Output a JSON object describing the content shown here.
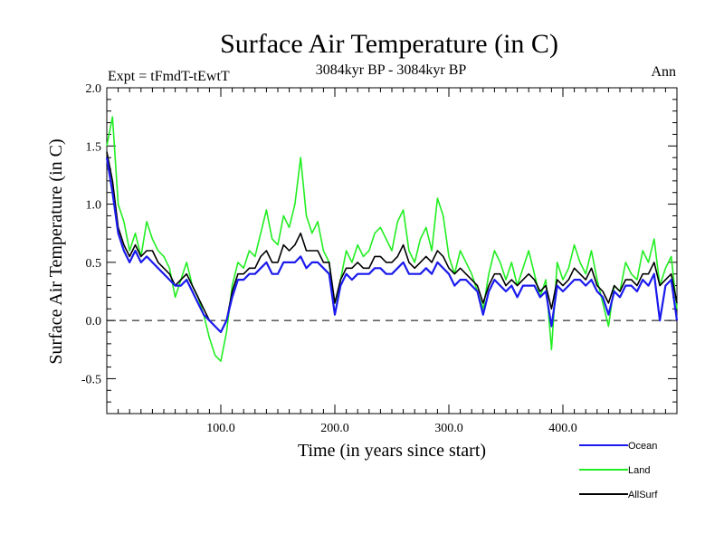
{
  "chart_data": {
    "type": "line",
    "title": "Surface Air Temperature (in C)",
    "subtitle": "3084kyr BP - 3084kyr BP",
    "experiment_label": "Expt = tFmdT-tEwtT",
    "season_label": "Ann",
    "xlabel": "Time (in years since start)",
    "ylabel": "Surface Air Temperature (in C)",
    "xlim": [
      0,
      500
    ],
    "ylim": [
      -0.8,
      2.0
    ],
    "x_ticks": [
      {
        "value": 100,
        "label": "100.0"
      },
      {
        "value": 200,
        "label": "200.0"
      },
      {
        "value": 300,
        "label": "300.0"
      },
      {
        "value": 400,
        "label": "400.0"
      }
    ],
    "y_ticks": [
      {
        "value": -0.5,
        "label": "-0.5"
      },
      {
        "value": 0.0,
        "label": "0.0"
      },
      {
        "value": 0.5,
        "label": "0.5"
      },
      {
        "value": 1.0,
        "label": "1.0"
      },
      {
        "value": 1.5,
        "label": "1.5"
      },
      {
        "value": 2.0,
        "label": "2.0"
      }
    ],
    "reference_line": {
      "y": 0.0,
      "style": "dashed"
    },
    "legend": {
      "placement": "bottom-right"
    },
    "series": [
      {
        "name": "Land",
        "color": "#22ee22",
        "x": [
          0,
          5,
          10,
          15,
          20,
          25,
          30,
          35,
          40,
          45,
          50,
          55,
          60,
          65,
          70,
          75,
          80,
          85,
          90,
          95,
          100,
          105,
          110,
          115,
          120,
          125,
          130,
          135,
          140,
          145,
          150,
          155,
          160,
          165,
          170,
          175,
          180,
          185,
          190,
          195,
          200,
          205,
          210,
          215,
          220,
          225,
          230,
          235,
          240,
          245,
          250,
          255,
          260,
          265,
          270,
          275,
          280,
          285,
          290,
          295,
          300,
          305,
          310,
          315,
          320,
          325,
          330,
          335,
          340,
          345,
          350,
          355,
          360,
          365,
          370,
          375,
          380,
          385,
          390,
          395,
          400,
          405,
          410,
          415,
          420,
          425,
          430,
          435,
          440,
          445,
          450,
          455,
          460,
          465,
          470,
          475,
          480,
          485,
          490,
          495,
          500
        ],
        "values": [
          1.5,
          1.75,
          1.0,
          0.85,
          0.6,
          0.75,
          0.55,
          0.85,
          0.7,
          0.6,
          0.55,
          0.45,
          0.2,
          0.35,
          0.5,
          0.3,
          0.2,
          0.05,
          -0.15,
          -0.3,
          -0.35,
          -0.1,
          0.3,
          0.5,
          0.45,
          0.6,
          0.55,
          0.75,
          0.95,
          0.7,
          0.65,
          0.9,
          0.8,
          1.0,
          1.4,
          0.9,
          0.75,
          0.85,
          0.6,
          0.5,
          0.05,
          0.35,
          0.6,
          0.5,
          0.65,
          0.55,
          0.6,
          0.75,
          0.8,
          0.7,
          0.6,
          0.85,
          0.95,
          0.6,
          0.5,
          0.7,
          0.8,
          0.6,
          1.05,
          0.9,
          0.55,
          0.4,
          0.6,
          0.5,
          0.4,
          0.25,
          0.1,
          0.4,
          0.6,
          0.5,
          0.35,
          0.5,
          0.3,
          0.45,
          0.6,
          0.4,
          0.2,
          0.35,
          -0.25,
          0.5,
          0.35,
          0.45,
          0.65,
          0.5,
          0.4,
          0.6,
          0.35,
          0.15,
          -0.05,
          0.3,
          0.25,
          0.5,
          0.4,
          0.35,
          0.6,
          0.5,
          0.7,
          0.3,
          0.45,
          0.55,
          0.1
        ]
      },
      {
        "name": "AllSurf",
        "color": "#000000",
        "x": [
          0,
          5,
          10,
          15,
          20,
          25,
          30,
          35,
          40,
          45,
          50,
          55,
          60,
          65,
          70,
          75,
          80,
          85,
          90,
          95,
          100,
          105,
          110,
          115,
          120,
          125,
          130,
          135,
          140,
          145,
          150,
          155,
          160,
          165,
          170,
          175,
          180,
          185,
          190,
          195,
          200,
          205,
          210,
          215,
          220,
          225,
          230,
          235,
          240,
          245,
          250,
          255,
          260,
          265,
          270,
          275,
          280,
          285,
          290,
          295,
          300,
          305,
          310,
          315,
          320,
          325,
          330,
          335,
          340,
          345,
          350,
          355,
          360,
          365,
          370,
          375,
          380,
          385,
          390,
          395,
          400,
          405,
          410,
          415,
          420,
          425,
          430,
          435,
          440,
          445,
          450,
          455,
          460,
          465,
          470,
          475,
          480,
          485,
          490,
          495,
          500
        ],
        "values": [
          1.45,
          1.2,
          0.8,
          0.65,
          0.55,
          0.65,
          0.55,
          0.6,
          0.6,
          0.5,
          0.45,
          0.4,
          0.3,
          0.35,
          0.4,
          0.3,
          0.2,
          0.1,
          0.0,
          -0.05,
          -0.1,
          0.0,
          0.25,
          0.4,
          0.4,
          0.45,
          0.45,
          0.55,
          0.6,
          0.5,
          0.5,
          0.65,
          0.6,
          0.65,
          0.75,
          0.6,
          0.6,
          0.6,
          0.5,
          0.5,
          0.15,
          0.35,
          0.45,
          0.45,
          0.5,
          0.45,
          0.45,
          0.55,
          0.55,
          0.5,
          0.5,
          0.55,
          0.65,
          0.5,
          0.45,
          0.5,
          0.55,
          0.5,
          0.6,
          0.55,
          0.45,
          0.4,
          0.45,
          0.4,
          0.35,
          0.3,
          0.15,
          0.3,
          0.4,
          0.4,
          0.3,
          0.35,
          0.3,
          0.35,
          0.4,
          0.35,
          0.25,
          0.3,
          0.1,
          0.35,
          0.3,
          0.35,
          0.45,
          0.4,
          0.35,
          0.45,
          0.3,
          0.25,
          0.15,
          0.3,
          0.25,
          0.35,
          0.35,
          0.3,
          0.4,
          0.4,
          0.5,
          0.3,
          0.35,
          0.4,
          0.15
        ]
      },
      {
        "name": "Ocean",
        "color": "#1a1aee",
        "x": [
          0,
          5,
          10,
          15,
          20,
          25,
          30,
          35,
          40,
          45,
          50,
          55,
          60,
          65,
          70,
          75,
          80,
          85,
          90,
          95,
          100,
          105,
          110,
          115,
          120,
          125,
          130,
          135,
          140,
          145,
          150,
          155,
          160,
          165,
          170,
          175,
          180,
          185,
          190,
          195,
          200,
          205,
          210,
          215,
          220,
          225,
          230,
          235,
          240,
          245,
          250,
          255,
          260,
          265,
          270,
          275,
          280,
          285,
          290,
          295,
          300,
          305,
          310,
          315,
          320,
          325,
          330,
          335,
          340,
          345,
          350,
          355,
          360,
          365,
          370,
          375,
          380,
          385,
          390,
          395,
          400,
          405,
          410,
          415,
          420,
          425,
          430,
          435,
          440,
          445,
          450,
          455,
          460,
          465,
          470,
          475,
          480,
          485,
          490,
          495,
          500
        ],
        "values": [
          1.4,
          1.1,
          0.75,
          0.6,
          0.5,
          0.6,
          0.5,
          0.55,
          0.5,
          0.45,
          0.4,
          0.35,
          0.3,
          0.3,
          0.35,
          0.25,
          0.15,
          0.05,
          0.0,
          -0.05,
          -0.1,
          0.0,
          0.2,
          0.35,
          0.35,
          0.4,
          0.4,
          0.45,
          0.5,
          0.4,
          0.4,
          0.5,
          0.5,
          0.5,
          0.55,
          0.45,
          0.5,
          0.5,
          0.45,
          0.4,
          0.05,
          0.3,
          0.4,
          0.35,
          0.4,
          0.4,
          0.4,
          0.45,
          0.45,
          0.4,
          0.4,
          0.45,
          0.5,
          0.4,
          0.4,
          0.4,
          0.45,
          0.4,
          0.5,
          0.45,
          0.4,
          0.3,
          0.35,
          0.35,
          0.3,
          0.25,
          0.05,
          0.25,
          0.35,
          0.3,
          0.25,
          0.3,
          0.2,
          0.3,
          0.3,
          0.3,
          0.2,
          0.25,
          -0.05,
          0.3,
          0.25,
          0.3,
          0.35,
          0.35,
          0.3,
          0.35,
          0.25,
          0.2,
          0.05,
          0.25,
          0.2,
          0.3,
          0.3,
          0.25,
          0.35,
          0.3,
          0.4,
          0.0,
          0.3,
          0.35,
          0.0
        ]
      }
    ],
    "legend_order": [
      "Ocean",
      "Land",
      "AllSurf"
    ]
  }
}
